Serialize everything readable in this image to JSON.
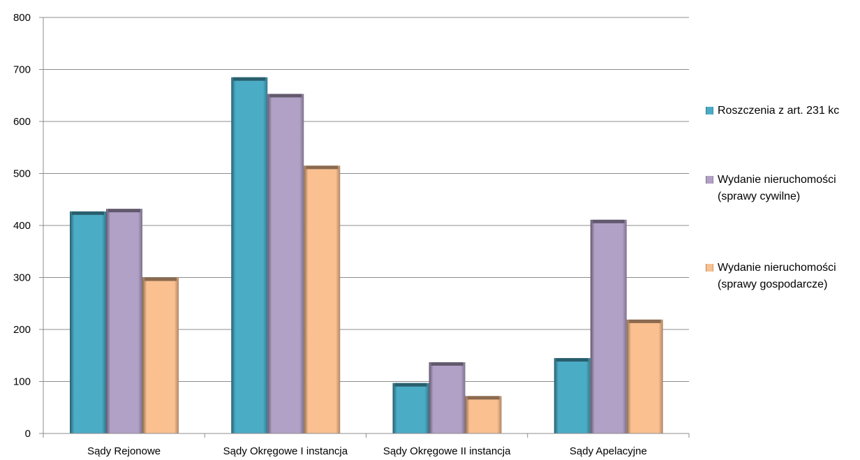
{
  "chart_data": {
    "type": "bar",
    "title": "",
    "xlabel": "",
    "ylabel": "",
    "ylim": [
      0,
      800
    ],
    "yticks": [
      0,
      100,
      200,
      300,
      400,
      500,
      600,
      700,
      800
    ],
    "grid": true,
    "legend_position": "right",
    "categories": [
      "Sądy Rejonowe",
      "Sądy Okręgowe I instancja",
      "Sądy Okręgowe II instancja",
      "Sądy Apelacyjne"
    ],
    "series": [
      {
        "name": "Roszczenia z art. 231 kc",
        "name_lines": [
          "Roszczenia z art. 231 kc"
        ],
        "color": "#4bacc6",
        "values": [
          427,
          685,
          97,
          145
        ]
      },
      {
        "name": "Wydanie nieruchomości (sprawy cywilne)",
        "name_lines": [
          "Wydanie nieruchomości",
          "(sprawy cywilne)"
        ],
        "color": "#b2a1c7",
        "values": [
          432,
          653,
          137,
          411
        ]
      },
      {
        "name": "Wydanie nieruchomości (sprawy gospodarcze)",
        "name_lines": [
          "Wydanie nieruchomości",
          "(sprawy gospodarcze)"
        ],
        "color": "#fac090",
        "values": [
          300,
          515,
          72,
          219
        ]
      }
    ]
  }
}
